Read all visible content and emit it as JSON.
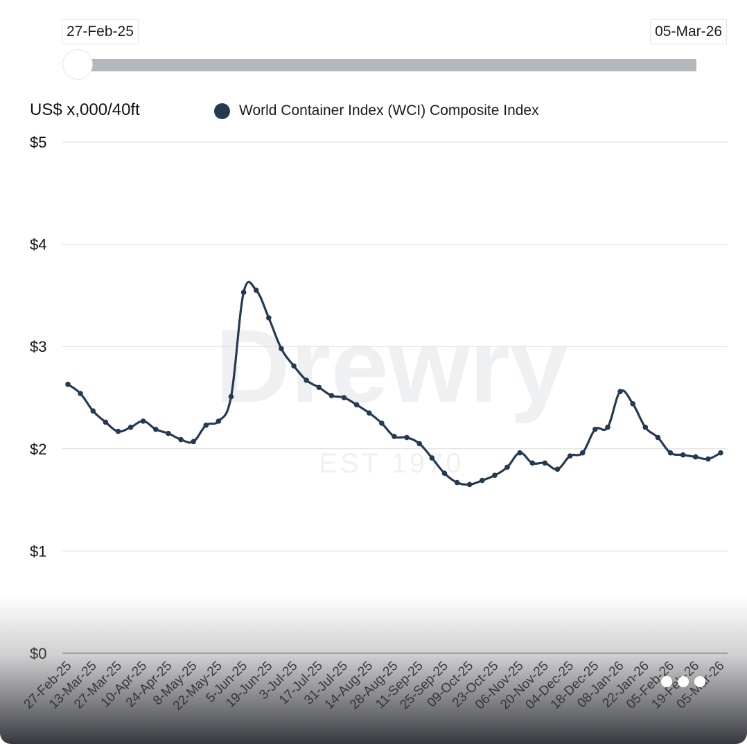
{
  "range_slider": {
    "start_label": "27-Feb-25",
    "end_label": "05-Mar-26",
    "position": 0
  },
  "watermark": {
    "brand": "Drewry",
    "tagline": "EST 1970"
  },
  "chart_data": {
    "type": "line",
    "title": "",
    "ylabel": "US$ x,000/40ft",
    "xlabel": "",
    "ylim": [
      0,
      5
    ],
    "yticks": [
      0,
      1,
      2,
      3,
      4,
      5
    ],
    "ytick_labels": [
      "$0",
      "$1",
      "$2",
      "$3",
      "$4",
      "$5"
    ],
    "grid": true,
    "legend_position": "top-center",
    "x": [
      "27-Feb-25",
      "06-Mar-25",
      "13-Mar-25",
      "20-Mar-25",
      "27-Mar-25",
      "03-Apr-25",
      "10-Apr-25",
      "17-Apr-25",
      "24-Apr-25",
      "01-May-25",
      "8-May-25",
      "15-May-25",
      "22-May-25",
      "29-May-25",
      "5-Jun-25",
      "12-Jun-25",
      "19-Jun-25",
      "26-Jun-25",
      "3-Jul-25",
      "10-Jul-25",
      "17-Jul-25",
      "24-Jul-25",
      "31-Jul-25",
      "07-Aug-25",
      "14-Aug-25",
      "21-Aug-25",
      "28-Aug-25",
      "04-Sep-25",
      "11-Sep-25",
      "18-Sep-25",
      "25-Sep-25",
      "02-Oct-25",
      "09-Oct-25",
      "16-Oct-25",
      "23-Oct-25",
      "30-Oct-25",
      "06-Nov-25",
      "13-Nov-25",
      "20-Nov-25",
      "27-Nov-25",
      "04-Dec-25",
      "11-Dec-25",
      "18-Dec-25",
      "25-Dec-25",
      "08-Jan-26",
      "15-Jan-26",
      "22-Jan-26",
      "29-Jan-26",
      "05-Feb-26",
      "12-Feb-26",
      "19-Feb-26",
      "26-Feb-26",
      "05-Mar-26"
    ],
    "xtick_labels": [
      "27-Feb-25",
      "13-Mar-25",
      "27-Mar-25",
      "10-Apr-25",
      "24-Apr-25",
      "8-May-25",
      "22-May-25",
      "5-Jun-25",
      "19-Jun-25",
      "3-Jul-25",
      "17-Jul-25",
      "31-Jul-25",
      "14-Aug-25",
      "28-Aug-25",
      "11-Sep-25",
      "25-Sep-25",
      "09-Oct-25",
      "23-Oct-25",
      "06-Nov-25",
      "20-Nov-25",
      "04-Dec-25",
      "18-Dec-25",
      "08-Jan-26",
      "22-Jan-26",
      "05-Feb-26",
      "19-Feb-26",
      "05-Mar-26"
    ],
    "series": [
      {
        "name": "World Container Index (WCI) Composite Index",
        "color": "#243a53",
        "values": [
          2.63,
          2.54,
          2.37,
          2.26,
          2.17,
          2.21,
          2.27,
          2.19,
          2.15,
          2.09,
          2.07,
          2.23,
          2.27,
          2.51,
          3.53,
          3.55,
          3.28,
          2.98,
          2.81,
          2.67,
          2.6,
          2.52,
          2.5,
          2.43,
          2.35,
          2.25,
          2.12,
          2.11,
          2.05,
          1.91,
          1.76,
          1.67,
          1.65,
          1.69,
          1.74,
          1.82,
          1.96,
          1.86,
          1.86,
          1.8,
          1.93,
          1.96,
          2.19,
          2.21,
          2.56,
          2.44,
          2.21,
          2.11,
          1.96,
          1.94,
          1.92,
          1.9,
          1.96
        ]
      }
    ]
  }
}
